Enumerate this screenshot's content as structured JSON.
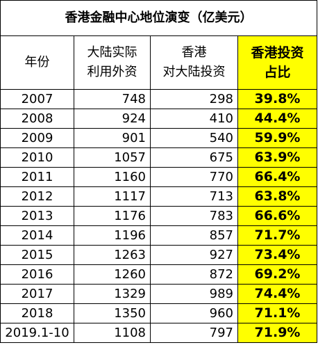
{
  "title": "香港金融中心地位演变（亿美元）",
  "headers": {
    "year": "年份",
    "fdi_line1": "大陆实际",
    "fdi_line2": "利用外资",
    "hk_line1": "香港",
    "hk_line2": "对大陆投资",
    "share_line1": "香港投资",
    "share_line2": "占比"
  },
  "highlight_color": "#FFFF00",
  "rows": [
    {
      "year": "2007",
      "fdi": "748",
      "hk": "298",
      "share": "39.8%"
    },
    {
      "year": "2008",
      "fdi": "924",
      "hk": "410",
      "share": "44.4%"
    },
    {
      "year": "2009",
      "fdi": "901",
      "hk": "540",
      "share": "59.9%"
    },
    {
      "year": "2010",
      "fdi": "1057",
      "hk": "675",
      "share": "63.9%"
    },
    {
      "year": "2011",
      "fdi": "1160",
      "hk": "770",
      "share": "66.4%"
    },
    {
      "year": "2012",
      "fdi": "1117",
      "hk": "713",
      "share": "63.8%"
    },
    {
      "year": "2013",
      "fdi": "1176",
      "hk": "783",
      "share": "66.6%"
    },
    {
      "year": "2014",
      "fdi": "1196",
      "hk": "857",
      "share": "71.7%"
    },
    {
      "year": "2015",
      "fdi": "1263",
      "hk": "927",
      "share": "73.4%"
    },
    {
      "year": "2016",
      "fdi": "1260",
      "hk": "872",
      "share": "69.2%"
    },
    {
      "year": "2017",
      "fdi": "1329",
      "hk": "989",
      "share": "74.4%"
    },
    {
      "year": "2018",
      "fdi": "1350",
      "hk": "960",
      "share": "71.1%"
    },
    {
      "year": "2019.1-10",
      "fdi": "1108",
      "hk": "797",
      "share": "71.9%"
    }
  ]
}
